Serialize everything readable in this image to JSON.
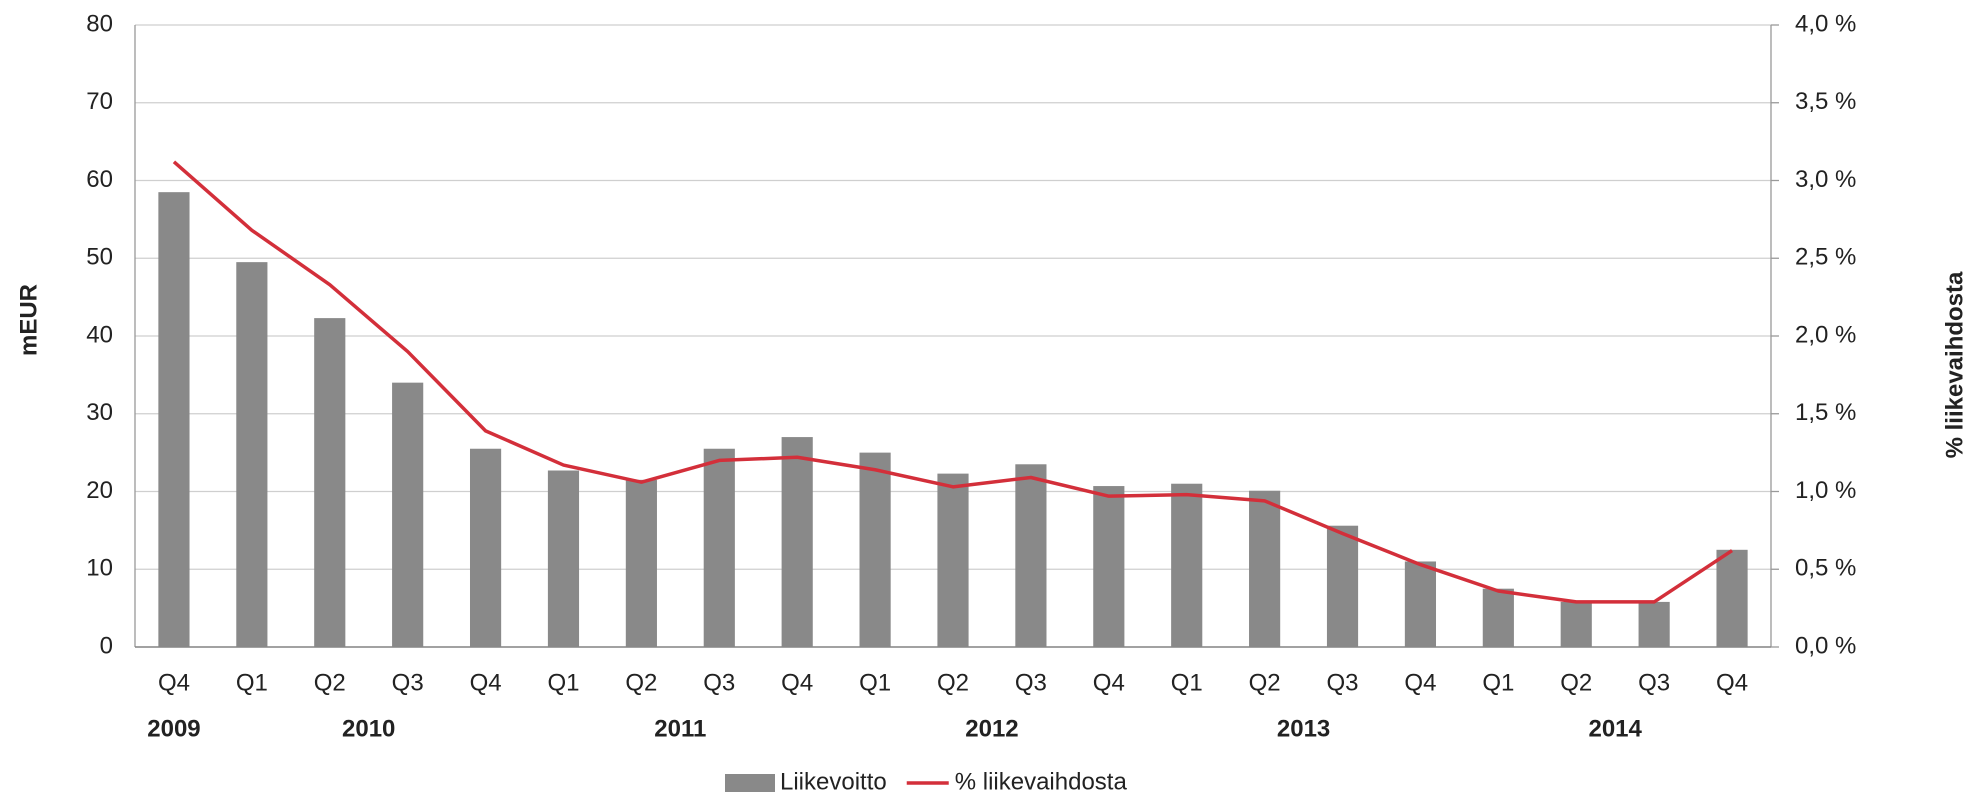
{
  "chart_data": {
    "type": "bar_line",
    "y_label": "mEUR",
    "y2_label": "% liikevaihdosta",
    "categories": [
      "Q4",
      "Q1",
      "Q2",
      "Q3",
      "Q4",
      "Q1",
      "Q2",
      "Q3",
      "Q4",
      "Q1",
      "Q2",
      "Q3",
      "Q4",
      "Q1",
      "Q2",
      "Q3",
      "Q4",
      "Q1",
      "Q2",
      "Q3",
      "Q4"
    ],
    "category_groups": [
      {
        "label": "2009",
        "span": 1
      },
      {
        "label": "2010",
        "span": 4
      },
      {
        "label": "2011",
        "span": 4
      },
      {
        "label": "2012",
        "span": 4
      },
      {
        "label": "2013",
        "span": 4
      },
      {
        "label": "2014",
        "span": 4
      }
    ],
    "series": [
      {
        "name": "Liikevoitto",
        "type": "bar",
        "color": "#898989",
        "values": [
          58.5,
          49.5,
          42.3,
          34,
          25.5,
          22.7,
          21.5,
          25.5,
          27,
          25,
          22.3,
          23.5,
          20.7,
          21,
          20.1,
          15.6,
          11,
          7.5,
          5.8,
          5.8,
          12.5
        ]
      },
      {
        "name": "% liikevaihdosta",
        "type": "line",
        "axis": "y2",
        "color": "#d32f3a",
        "values": [
          3.12,
          2.68,
          2.33,
          1.9,
          1.39,
          1.17,
          1.06,
          1.2,
          1.22,
          1.14,
          1.03,
          1.09,
          0.97,
          0.98,
          0.94,
          0.73,
          0.53,
          0.36,
          0.29,
          0.29,
          0.62
        ]
      }
    ],
    "ylim": [
      0,
      80
    ],
    "yticks": [
      0,
      10,
      20,
      30,
      40,
      50,
      60,
      70,
      80
    ],
    "y2lim": [
      0,
      4
    ],
    "y2ticks": [
      {
        "value": 0,
        "label": "0,0 %"
      },
      {
        "value": 0.5,
        "label": "0,5 %"
      },
      {
        "value": 1,
        "label": "1,0 %"
      },
      {
        "value": 1.5,
        "label": "1,5 %"
      },
      {
        "value": 2,
        "label": "2,0 %"
      },
      {
        "value": 2.5,
        "label": "2,5 %"
      },
      {
        "value": 3,
        "label": "3,0 %"
      },
      {
        "value": 3.5,
        "label": "3,5 %"
      },
      {
        "value": 4,
        "label": "4,0 %"
      }
    ],
    "grid": true,
    "legend": "bottom"
  }
}
